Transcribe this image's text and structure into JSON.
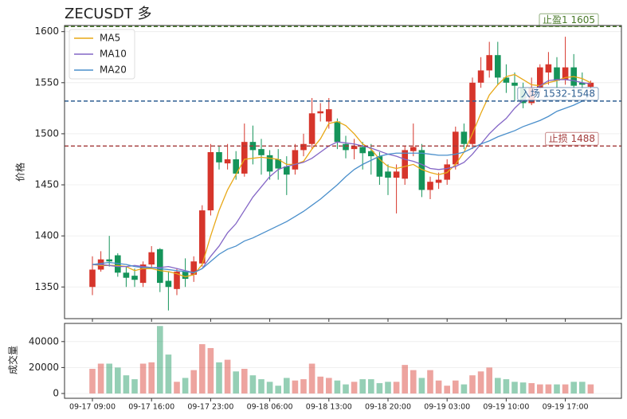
{
  "chart_data": {
    "type": "candlestick",
    "title": "ZECUSDT 多",
    "ylabel": "价格",
    "volume_label": "成交量",
    "categories": [
      "09-17 09:00",
      null,
      null,
      null,
      null,
      null,
      null,
      "09-17 16:00",
      null,
      null,
      null,
      null,
      null,
      null,
      "09-17 23:00",
      null,
      null,
      null,
      null,
      null,
      null,
      "09-18 06:00",
      null,
      null,
      null,
      null,
      null,
      null,
      "09-18 13:00",
      null,
      null,
      null,
      null,
      null,
      null,
      "09-18 20:00",
      null,
      null,
      null,
      null,
      null,
      null,
      "09-19 03:00",
      null,
      null,
      null,
      null,
      null,
      null,
      "09-19 10:00",
      null,
      null,
      null,
      null,
      null,
      null,
      "09-19 17:00",
      null,
      null,
      null
    ],
    "open": [
      1350,
      1367,
      1377,
      1381,
      1364,
      1361,
      1354,
      1372,
      1387,
      1356,
      1348,
      1365,
      1362,
      1373,
      1425,
      1482,
      1471,
      1475,
      1461,
      1492,
      1485,
      1479,
      1475,
      1468,
      1465,
      1484,
      1490,
      1520,
      1512,
      1512,
      1490,
      1485,
      1487,
      1483,
      1478,
      1463,
      1457,
      1456,
      1483,
      1484,
      1445,
      1452,
      1455,
      1470,
      1502,
      1490,
      1550,
      1562,
      1577,
      1555,
      1550,
      1545,
      1530,
      1545,
      1560,
      1565,
      1553,
      1565,
      1550,
      1546
    ],
    "high": [
      1380,
      1385,
      1400,
      1383,
      1370,
      1368,
      1375,
      1390,
      1388,
      1365,
      1368,
      1378,
      1380,
      1430,
      1490,
      1488,
      1490,
      1483,
      1510,
      1508,
      1495,
      1484,
      1485,
      1478,
      1490,
      1500,
      1535,
      1530,
      1535,
      1515,
      1498,
      1495,
      1492,
      1490,
      1482,
      1470,
      1470,
      1488,
      1510,
      1490,
      1458,
      1462,
      1475,
      1507,
      1510,
      1555,
      1575,
      1590,
      1590,
      1568,
      1560,
      1550,
      1555,
      1568,
      1580,
      1575,
      1595,
      1578,
      1560,
      1552
    ],
    "low": [
      1342,
      1365,
      1370,
      1360,
      1350,
      1350,
      1350,
      1368,
      1345,
      1327,
      1342,
      1350,
      1355,
      1370,
      1420,
      1465,
      1465,
      1455,
      1458,
      1470,
      1460,
      1455,
      1455,
      1440,
      1460,
      1478,
      1485,
      1512,
      1505,
      1485,
      1476,
      1475,
      1465,
      1460,
      1450,
      1440,
      1422,
      1450,
      1478,
      1438,
      1436,
      1446,
      1450,
      1465,
      1485,
      1485,
      1545,
      1555,
      1548,
      1540,
      1532,
      1525,
      1528,
      1540,
      1548,
      1545,
      1548,
      1535,
      1540,
      1540
    ],
    "close": [
      1367,
      1377,
      1375,
      1364,
      1359,
      1357,
      1372,
      1384,
      1354,
      1350,
      1365,
      1358,
      1375,
      1425,
      1482,
      1472,
      1475,
      1461,
      1492,
      1484,
      1479,
      1463,
      1466,
      1460,
      1484,
      1490,
      1520,
      1522,
      1524,
      1492,
      1484,
      1488,
      1481,
      1478,
      1458,
      1457,
      1463,
      1484,
      1487,
      1445,
      1453,
      1455,
      1470,
      1502,
      1490,
      1550,
      1562,
      1577,
      1555,
      1550,
      1547,
      1530,
      1545,
      1565,
      1568,
      1552,
      1565,
      1547,
      1548,
      1550
    ],
    "up_color": "#d6352b",
    "down_color": "#15945a",
    "series": [
      {
        "name": "MA5",
        "color": "#e8a817",
        "values": [
          1372,
          1371,
          1371,
          1371,
          1370,
          1366,
          1368,
          1368,
          1366,
          1365,
          1363,
          1360,
          1362,
          1372,
          1400,
          1425,
          1445,
          1460,
          1475,
          1476,
          1477,
          1476,
          1475,
          1470,
          1470,
          1473,
          1485,
          1495,
          1510,
          1512,
          1508,
          1500,
          1490,
          1485,
          1475,
          1468,
          1466,
          1468,
          1470,
          1465,
          1462,
          1460,
          1462,
          1470,
          1482,
          1500,
          1520,
          1538,
          1548,
          1556,
          1558,
          1553,
          1548,
          1547,
          1550,
          1552,
          1555,
          1556,
          1554,
          1550
        ]
      },
      {
        "name": "MA10",
        "color": "#8466c6",
        "values": [
          1372,
          1372,
          1371,
          1370,
          1370,
          1371,
          1370,
          1369,
          1369,
          1370,
          1368,
          1366,
          1364,
          1368,
          1380,
          1390,
          1403,
          1412,
          1425,
          1438,
          1448,
          1458,
          1465,
          1468,
          1470,
          1472,
          1476,
          1482,
          1488,
          1492,
          1491,
          1490,
          1488,
          1486,
          1483,
          1480,
          1478,
          1475,
          1473,
          1470,
          1466,
          1465,
          1466,
          1468,
          1472,
          1480,
          1490,
          1500,
          1508,
          1515,
          1525,
          1533,
          1540,
          1547,
          1552,
          1553,
          1553,
          1552,
          1550,
          1549
        ]
      },
      {
        "name": "MA20",
        "color": "#4a8fcb",
        "values": [
          1372,
          1373,
          1374,
          1373,
          1372,
          1370,
          1369,
          1369,
          1368,
          1367,
          1366,
          1365,
          1364,
          1368,
          1375,
          1382,
          1387,
          1390,
          1395,
          1398,
          1402,
          1406,
          1410,
          1414,
          1419,
          1424,
          1430,
          1436,
          1443,
          1450,
          1458,
          1465,
          1470,
          1474,
          1478,
          1480,
          1481,
          1481,
          1481,
          1481,
          1480,
          1479,
          1479,
          1480,
          1482,
          1486,
          1490,
          1493,
          1497,
          1500,
          1503,
          1507,
          1510,
          1513,
          1517,
          1522,
          1525,
          1528,
          1532,
          1538
        ]
      }
    ],
    "volume": [
      19000,
      23000,
      23000,
      20000,
      14000,
      11000,
      23000,
      24000,
      52000,
      30000,
      9000,
      12000,
      18000,
      38000,
      35000,
      24000,
      26000,
      17000,
      19000,
      14000,
      11000,
      9000,
      6000,
      12000,
      10000,
      11000,
      23000,
      13000,
      12000,
      10000,
      7000,
      9000,
      11000,
      11000,
      8000,
      9000,
      9000,
      22000,
      18000,
      12000,
      18000,
      10000,
      6000,
      10000,
      7000,
      14000,
      17000,
      20000,
      12000,
      11000,
      9000,
      8500,
      8000,
      7000,
      7000,
      7000,
      7000,
      9000,
      9000,
      7000
    ],
    "levels": [
      {
        "label": "止盈1 1605",
        "value": 1605,
        "color": "#4a7a2a"
      },
      {
        "label": "入场 1532-1548",
        "value": 1532,
        "color": "#2e5f92"
      },
      {
        "label": "止损 1488",
        "value": 1488,
        "color": "#a33a3a"
      }
    ],
    "ylim": [
      1319,
      1606
    ],
    "yticks": [
      1350,
      1400,
      1450,
      1500,
      1550,
      1600
    ],
    "volume_ylim": [
      -3700,
      54000
    ],
    "volume_yticks": [
      0,
      20000,
      40000
    ],
    "grid": true,
    "legend": "upper left"
  }
}
